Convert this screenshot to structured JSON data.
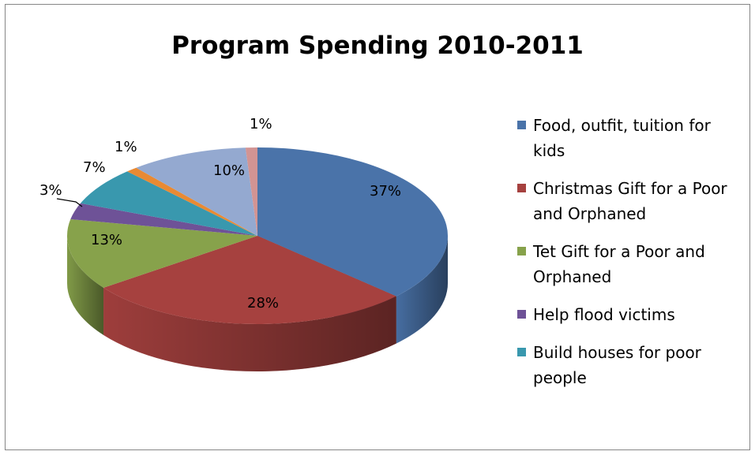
{
  "chart_data": {
    "type": "pie",
    "title": "Program Spending 2010-2011",
    "slices": [
      {
        "label": "Food, outfit, tuition for kids",
        "value": 37,
        "text": "37%",
        "color": "#4a73a9"
      },
      {
        "label": "Christmas Gift for a Poor and Orphaned",
        "value": 28,
        "text": "28%",
        "color": "#a6413f"
      },
      {
        "label": "Tet Gift for a Poor and Orphaned",
        "value": 13,
        "text": "13%",
        "color": "#87a24b"
      },
      {
        "label": "Help flood victims",
        "value": 3,
        "text": "3%",
        "color": "#6e5297"
      },
      {
        "label": "Build houses for poor people",
        "value": 7,
        "text": "7%",
        "color": "#3998ae"
      },
      {
        "label": "",
        "value": 1,
        "text": "1%",
        "color": "#e98a33"
      },
      {
        "label": "",
        "value": 10,
        "text": "10%",
        "color": "#94a9d0"
      },
      {
        "label": "",
        "value": 1,
        "text": "1%",
        "color": "#d29493"
      }
    ],
    "legend_position": "right"
  }
}
